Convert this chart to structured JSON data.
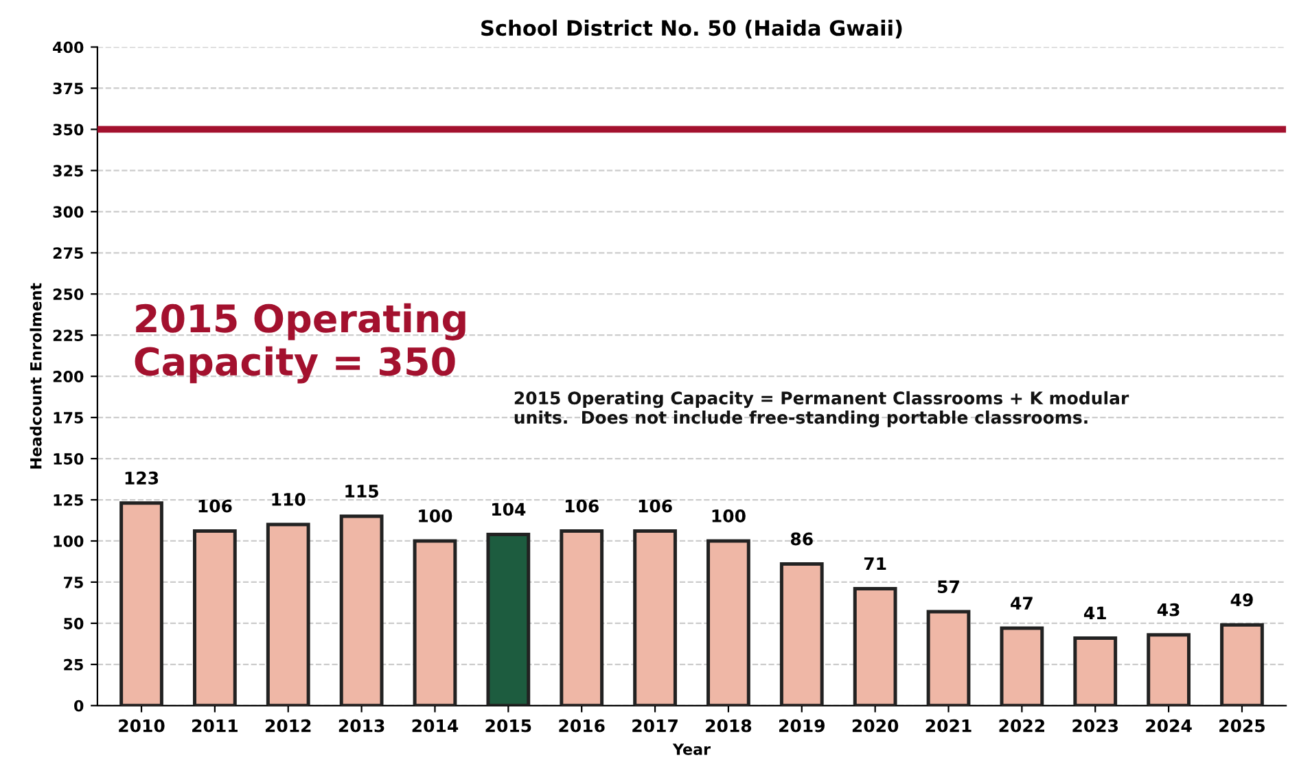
{
  "chart_data": {
    "type": "bar",
    "title": "School District No. 50 (Haida Gwaii)",
    "xlabel": "Year",
    "ylabel": "Headcount Enrolment",
    "categories": [
      "2010",
      "2011",
      "2012",
      "2013",
      "2014",
      "2015",
      "2016",
      "2017",
      "2018",
      "2019",
      "2020",
      "2021",
      "2022",
      "2023",
      "2024",
      "2025"
    ],
    "values": [
      123,
      106,
      110,
      115,
      100,
      104,
      106,
      106,
      100,
      86,
      71,
      57,
      47,
      41,
      43,
      49
    ],
    "colors": [
      "#efb7a6",
      "#efb7a6",
      "#efb7a6",
      "#efb7a6",
      "#efb7a6",
      "#1d5c3f",
      "#efb7a6",
      "#efb7a6",
      "#efb7a6",
      "#efb7a6",
      "#efb7a6",
      "#efb7a6",
      "#efb7a6",
      "#efb7a6",
      "#efb7a6",
      "#efb7a6"
    ],
    "data_labels": true,
    "ylim": [
      0,
      400
    ],
    "yticks": [
      0,
      25,
      50,
      75,
      100,
      125,
      150,
      175,
      200,
      225,
      250,
      275,
      300,
      325,
      350,
      375,
      400
    ],
    "grid": "y",
    "ref_lines": [
      {
        "axis": "y",
        "value": 350,
        "color": "#a3112e"
      }
    ],
    "annotations": [
      "2015 Operating Capacity = 350",
      "2015 Operating Capacity = Permanent Classrooms + K modular units.  Does not include free-standing portable classrooms."
    ]
  }
}
